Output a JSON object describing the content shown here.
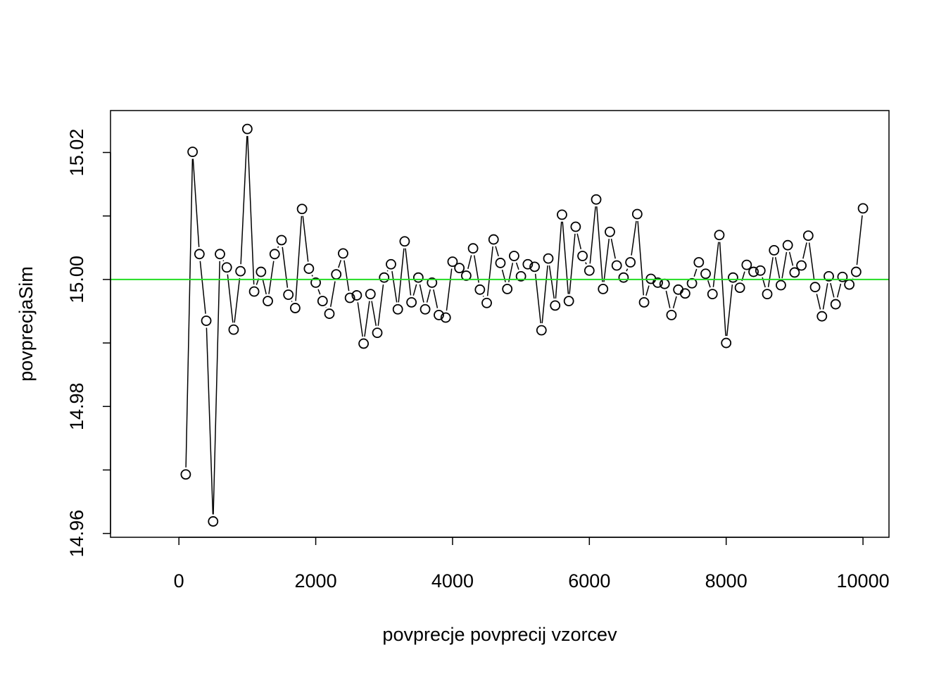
{
  "chart_data": {
    "type": "line",
    "title": "",
    "xlabel": "povprecje povprecij vzorcev",
    "ylabel": "povprecjaSim",
    "xlim": [
      -1000,
      10380
    ],
    "ylim": [
      14.9594,
      15.0266
    ],
    "xticks": [
      0,
      2000,
      4000,
      6000,
      8000,
      10000
    ],
    "yticks": [
      14.96,
      14.98,
      15.0,
      15.02
    ],
    "grid": false,
    "legend": "none",
    "line_style": "points-and-line",
    "reference_line": {
      "y": 15.0,
      "color": "#22dd22"
    },
    "series": [
      {
        "x": [
          100,
          200,
          300,
          400,
          500,
          600,
          700,
          800,
          900,
          1000,
          1100,
          1200,
          1300,
          1400,
          1500,
          1600,
          1700,
          1800,
          1900,
          2000,
          2100,
          2200,
          2300,
          2400,
          2500,
          2600,
          2700,
          2800,
          2900,
          3000,
          3100,
          3200,
          3300,
          3400,
          3500,
          3600,
          3700,
          3800,
          3900,
          4000,
          4100,
          4200,
          4300,
          4400,
          4500,
          4600,
          4700,
          4800,
          4900,
          5000,
          5100,
          5200,
          5300,
          5400,
          5500,
          5600,
          5700,
          5800,
          5900,
          6000,
          6100,
          6200,
          6300,
          6400,
          6500,
          6600,
          6700,
          6800,
          6900,
          7000,
          7100,
          7200,
          7300,
          7400,
          7500,
          7600,
          7700,
          7800,
          7900,
          8000,
          8100,
          8200,
          8300,
          8400,
          8500,
          8600,
          8700,
          8800,
          8900,
          9000,
          9100,
          9200,
          9300,
          9400,
          9500,
          9600,
          9700,
          9800,
          9900,
          10000
        ],
        "y": [
          14.9693,
          15.0201,
          15.004,
          14.9935,
          14.9619,
          15.004,
          15.0019,
          14.9921,
          15.0013,
          15.0237,
          14.9981,
          15.0012,
          14.9966,
          15.004,
          15.0062,
          14.9976,
          14.9955,
          15.0111,
          15.0017,
          14.9995,
          14.9966,
          14.9946,
          15.0008,
          15.0041,
          14.9971,
          14.9975,
          14.9899,
          14.9977,
          14.9916,
          15.0003,
          15.0024,
          14.9953,
          15.006,
          14.9964,
          15.0003,
          14.9953,
          14.9995,
          14.9944,
          14.994,
          15.0028,
          15.0018,
          15.0006,
          15.0049,
          14.9984,
          14.9963,
          15.0063,
          15.0026,
          14.9985,
          15.0037,
          15.0005,
          15.0024,
          15.002,
          14.992,
          15.0033,
          14.9959,
          15.0102,
          14.9966,
          15.0083,
          15.0037,
          15.0014,
          15.0126,
          14.9985,
          15.0075,
          15.0022,
          15.0003,
          15.0027,
          15.0103,
          14.9964,
          15.0001,
          14.9995,
          14.9993,
          14.9944,
          14.9984,
          14.9978,
          14.9994,
          15.0027,
          15.0009,
          14.9977,
          15.007,
          14.99,
          15.0003,
          14.9987,
          15.0023,
          15.0012,
          15.0014,
          14.9977,
          15.0046,
          14.9991,
          15.0054,
          15.0011,
          15.0022,
          15.0069,
          14.9988,
          14.9942,
          15.0005,
          14.9961,
          15.0004,
          14.9992,
          15.0012,
          15.0112
        ]
      }
    ]
  }
}
